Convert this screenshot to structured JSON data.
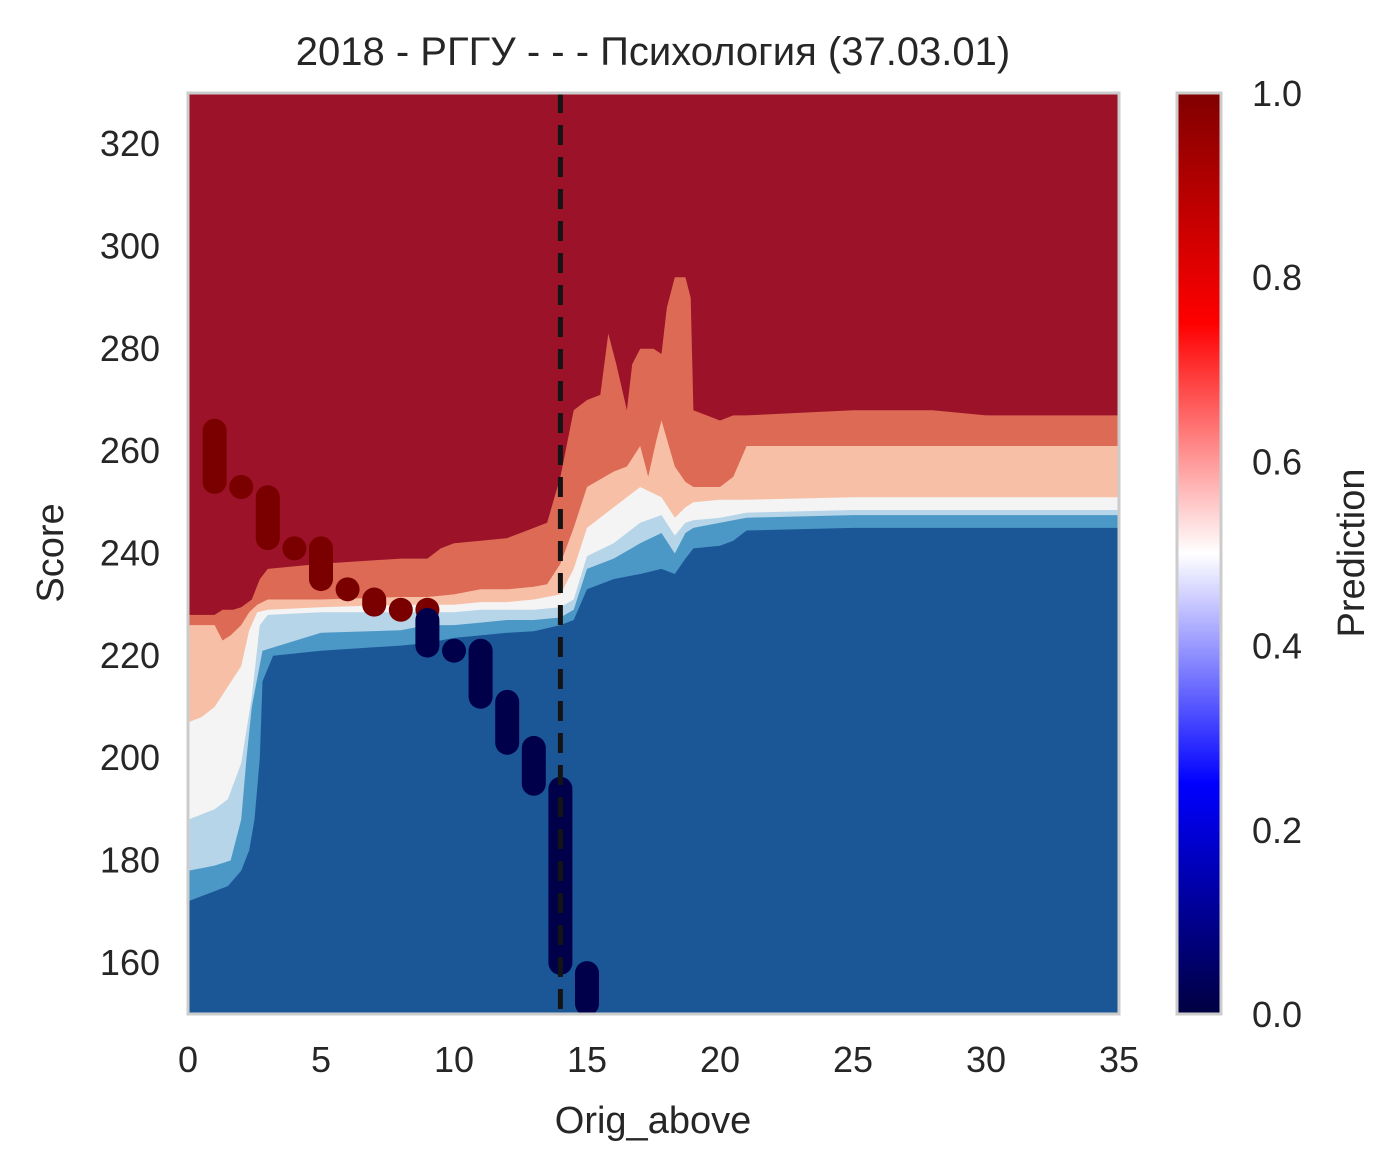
{
  "chart_data": {
    "type": "heatmap",
    "title": "2018 - РГГУ - - - Психология (37.03.01)",
    "xlabel": "Orig_above",
    "ylabel": "Score",
    "xlim": [
      0,
      35
    ],
    "ylim": [
      150,
      330
    ],
    "x_ticks": [
      0,
      5,
      10,
      15,
      20,
      25,
      30,
      35
    ],
    "y_ticks": [
      160,
      180,
      200,
      220,
      240,
      260,
      280,
      300,
      320
    ],
    "grid": false,
    "colorbar": {
      "label": "Prediction",
      "range": [
        0.0,
        1.0
      ],
      "ticks": [
        "0.0",
        "0.2",
        "0.4",
        "0.6",
        "0.8",
        "1.0"
      ],
      "colormap": "seismic"
    },
    "contour_levels": [
      {
        "level": "<0.1",
        "color": "#1b5797"
      },
      {
        "level": "0.1-0.2",
        "color": "#4b98c6"
      },
      {
        "level": "0.2-0.4",
        "color": "#b6d5e8"
      },
      {
        "level": "0.4-0.6",
        "color": "#f4f4f4"
      },
      {
        "level": "0.6-0.8",
        "color": "#f7c0a6"
      },
      {
        "level": "0.8-0.9",
        "color": "#dc6a55"
      },
      {
        "level": ">0.9",
        "color": "#9b1229"
      }
    ],
    "contours": {
      "b01": [
        [
          0,
          172
        ],
        [
          0.5,
          173
        ],
        [
          1,
          174
        ],
        [
          1.5,
          175
        ],
        [
          2,
          178
        ],
        [
          2.3,
          182
        ],
        [
          2.5,
          188
        ],
        [
          2.7,
          200
        ],
        [
          2.8,
          215
        ],
        [
          3.2,
          220
        ],
        [
          5,
          221
        ],
        [
          8,
          222
        ],
        [
          9,
          222.5
        ],
        [
          10,
          223.5
        ],
        [
          11,
          224
        ],
        [
          12,
          224.5
        ],
        [
          13,
          224.8
        ],
        [
          14,
          226
        ],
        [
          14.5,
          227
        ],
        [
          15,
          233
        ],
        [
          16,
          235
        ],
        [
          17,
          236
        ],
        [
          17.8,
          237
        ],
        [
          18.3,
          236
        ],
        [
          18.7,
          239
        ],
        [
          19,
          241
        ],
        [
          20,
          241.5
        ],
        [
          20.5,
          242.5
        ],
        [
          21,
          244.5
        ],
        [
          25,
          245
        ],
        [
          30,
          245
        ],
        [
          35,
          245
        ]
      ],
      "b02": [
        [
          0,
          178
        ],
        [
          0.5,
          178.5
        ],
        [
          1,
          179
        ],
        [
          1.6,
          180
        ],
        [
          2,
          188
        ],
        [
          2.2,
          200
        ],
        [
          2.4,
          210
        ],
        [
          2.8,
          221
        ],
        [
          5,
          224.5
        ],
        [
          8,
          225
        ],
        [
          9,
          226
        ],
        [
          10,
          226
        ],
        [
          11,
          226.5
        ],
        [
          12,
          227
        ],
        [
          13,
          227
        ],
        [
          14,
          227.5
        ],
        [
          14.5,
          229
        ],
        [
          15,
          237
        ],
        [
          16,
          239
        ],
        [
          17,
          242
        ],
        [
          17.8,
          244
        ],
        [
          18.3,
          240
        ],
        [
          18.7,
          244
        ],
        [
          19,
          245
        ],
        [
          20,
          246
        ],
        [
          21,
          247
        ],
        [
          25,
          247.5
        ],
        [
          30,
          247.5
        ],
        [
          35,
          247.5
        ]
      ],
      "b04": [
        [
          0,
          188
        ],
        [
          0.5,
          189
        ],
        [
          1,
          190
        ],
        [
          1.5,
          192
        ],
        [
          2,
          199
        ],
        [
          2.4,
          212
        ],
        [
          2.7,
          226
        ],
        [
          3,
          228
        ],
        [
          5,
          228.5
        ],
        [
          8,
          228.5
        ],
        [
          9,
          228.5
        ],
        [
          10,
          228.5
        ],
        [
          11,
          229
        ],
        [
          12,
          229
        ],
        [
          13,
          229
        ],
        [
          14,
          229.5
        ],
        [
          14.5,
          231
        ],
        [
          15,
          239.5
        ],
        [
          16,
          242
        ],
        [
          17,
          246
        ],
        [
          17.8,
          247.5
        ],
        [
          18.3,
          243.5
        ],
        [
          18.7,
          246
        ],
        [
          19,
          246.5
        ],
        [
          20,
          247
        ],
        [
          21,
          248
        ],
        [
          25,
          248.5
        ],
        [
          30,
          248.5
        ],
        [
          35,
          248.5
        ]
      ],
      "b06": [
        [
          0,
          207
        ],
        [
          0.5,
          208
        ],
        [
          1,
          210
        ],
        [
          1.5,
          214
        ],
        [
          2,
          218
        ],
        [
          2.3,
          225
        ],
        [
          2.6,
          228.5
        ],
        [
          3,
          229
        ],
        [
          5,
          229.5
        ],
        [
          8,
          230
        ],
        [
          9,
          230
        ],
        [
          10,
          230
        ],
        [
          11,
          230.5
        ],
        [
          12,
          230.5
        ],
        [
          13,
          231
        ],
        [
          14,
          232
        ],
        [
          14.5,
          237
        ],
        [
          15,
          245
        ],
        [
          16,
          249
        ],
        [
          17,
          253
        ],
        [
          17.8,
          251
        ],
        [
          18.3,
          247
        ],
        [
          18.7,
          249
        ],
        [
          19,
          250
        ],
        [
          20,
          250.5
        ],
        [
          21,
          250.5
        ],
        [
          25,
          251
        ],
        [
          30,
          251
        ],
        [
          35,
          251
        ]
      ],
      "b08": [
        [
          0,
          226
        ],
        [
          0.6,
          226
        ],
        [
          1,
          226
        ],
        [
          1.3,
          223
        ],
        [
          1.6,
          224
        ],
        [
          2,
          226
        ],
        [
          2.3,
          228.5
        ],
        [
          2.6,
          230
        ],
        [
          3,
          231
        ],
        [
          5,
          231
        ],
        [
          8,
          231.5
        ],
        [
          9,
          231.5
        ],
        [
          10,
          232
        ],
        [
          11,
          233
        ],
        [
          12,
          233
        ],
        [
          13,
          233.5
        ],
        [
          13.5,
          234
        ],
        [
          14,
          238
        ],
        [
          14.5,
          245
        ],
        [
          15,
          253
        ],
        [
          16,
          256
        ],
        [
          16.5,
          257
        ],
        [
          17,
          261
        ],
        [
          17.3,
          255
        ],
        [
          17.6,
          262
        ],
        [
          17.8,
          266
        ],
        [
          18.3,
          257
        ],
        [
          18.7,
          254
        ],
        [
          19,
          253
        ],
        [
          20,
          253
        ],
        [
          20.5,
          255
        ],
        [
          21,
          261
        ],
        [
          25,
          261
        ],
        [
          28,
          261
        ],
        [
          30,
          261
        ],
        [
          35,
          261
        ]
      ],
      "b09": [
        [
          0,
          228
        ],
        [
          0.6,
          228
        ],
        [
          1,
          228
        ],
        [
          1.3,
          229
        ],
        [
          1.7,
          229
        ],
        [
          2,
          229.5
        ],
        [
          2.4,
          231
        ],
        [
          2.7,
          235
        ],
        [
          3,
          237
        ],
        [
          5,
          238
        ],
        [
          8,
          239
        ],
        [
          9,
          239
        ],
        [
          9.5,
          241
        ],
        [
          10,
          242
        ],
        [
          11,
          242.5
        ],
        [
          12,
          243
        ],
        [
          12.5,
          244
        ],
        [
          13,
          245
        ],
        [
          13.5,
          246
        ],
        [
          14,
          255
        ],
        [
          14.5,
          268
        ],
        [
          15,
          270
        ],
        [
          15.5,
          271
        ],
        [
          15.8,
          283
        ],
        [
          16.1,
          277
        ],
        [
          16.5,
          268
        ],
        [
          16.7,
          277
        ],
        [
          17,
          280
        ],
        [
          17.5,
          280
        ],
        [
          17.8,
          279
        ],
        [
          18,
          288
        ],
        [
          18.3,
          294
        ],
        [
          18.7,
          294
        ],
        [
          18.9,
          290
        ],
        [
          19,
          268
        ],
        [
          20,
          266
        ],
        [
          20.5,
          267
        ],
        [
          21,
          267
        ],
        [
          25,
          268
        ],
        [
          28,
          268
        ],
        [
          30,
          267
        ],
        [
          35,
          267
        ]
      ]
    },
    "series": [
      {
        "name": "",
        "points": [
          {
            "x": 1,
            "y0": 254,
            "y1": 264,
            "cls": 1
          },
          {
            "x": 2,
            "y0": 253,
            "y1": 253,
            "cls": 1
          },
          {
            "x": 3,
            "y0": 243,
            "y1": 251,
            "cls": 1
          },
          {
            "x": 4,
            "y0": 241,
            "y1": 241,
            "cls": 1
          },
          {
            "x": 5,
            "y0": 235,
            "y1": 241,
            "cls": 1
          },
          {
            "x": 6,
            "y0": 233,
            "y1": 233,
            "cls": 1
          },
          {
            "x": 7,
            "y0": 230,
            "y1": 231,
            "cls": 1
          },
          {
            "x": 8,
            "y0": 229,
            "y1": 229,
            "cls": 1
          },
          {
            "x": 9,
            "y0": 229,
            "y1": 229,
            "cls": 1
          },
          {
            "x": 9,
            "y0": 222,
            "y1": 227,
            "cls": 0
          },
          {
            "x": 10,
            "y0": 221,
            "y1": 221,
            "cls": 0
          },
          {
            "x": 11,
            "y0": 212,
            "y1": 221,
            "cls": 0
          },
          {
            "x": 12,
            "y0": 203,
            "y1": 211,
            "cls": 0
          },
          {
            "x": 13,
            "y0": 195,
            "y1": 202,
            "cls": 0
          },
          {
            "x": 14,
            "y0": 160,
            "y1": 194,
            "cls": 0
          },
          {
            "x": 15,
            "y0": 152,
            "y1": 158,
            "cls": 0
          }
        ]
      }
    ],
    "reference_line": {
      "x": 14,
      "style": "dashed"
    }
  }
}
